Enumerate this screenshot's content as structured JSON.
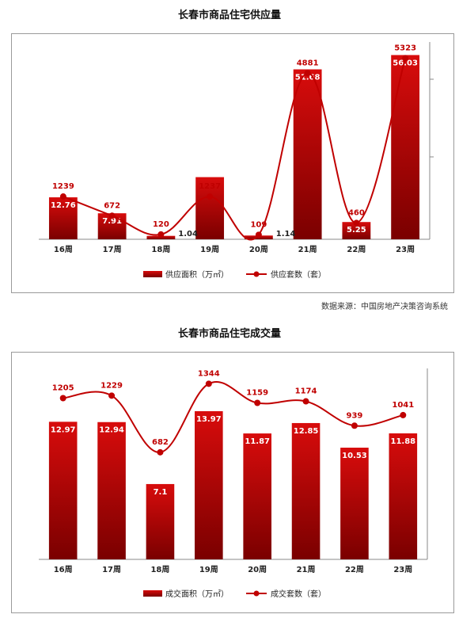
{
  "chart_data": [
    {
      "type": "bar",
      "title": "长春市商品住宅供应量",
      "categories": [
        "16周",
        "17周",
        "18周",
        "19周",
        "20周",
        "21周",
        "22周",
        "23周"
      ],
      "series": [
        {
          "name": "供应面积（万㎡）",
          "kind": "bar",
          "values": [
            12.76,
            7.91,
            1.04,
            18.9,
            1.14,
            51.68,
            5.25,
            56.03
          ],
          "labels": [
            "12.76",
            "7.91",
            "1.04",
            "",
            "1.14",
            "51.68",
            "5.25",
            "56.03"
          ]
        },
        {
          "name": "供应套数（套）",
          "kind": "line",
          "values": [
            1239,
            672,
            120,
            1237,
            109,
            4881,
            460,
            5323
          ],
          "labels": [
            "1239",
            "672",
            "120",
            "1237",
            "109",
            "4881",
            "460",
            "5323"
          ]
        }
      ],
      "bar_max": 60,
      "line_max": 5800,
      "source": "数据来源：中国房地产决策咨询系统"
    },
    {
      "type": "bar",
      "title": "长春市商品住宅成交量",
      "categories": [
        "16周",
        "17周",
        "18周",
        "19周",
        "20周",
        "21周",
        "22周",
        "23周"
      ],
      "series": [
        {
          "name": "成交面积（万㎡）",
          "kind": "bar",
          "values": [
            12.97,
            12.94,
            7.1,
            13.97,
            11.87,
            12.85,
            10.53,
            11.88
          ],
          "labels": [
            "12.97",
            "12.94",
            "7.1",
            "13.97",
            "11.87",
            "12.85",
            "10.53",
            "11.88"
          ]
        },
        {
          "name": "成交套数（套）",
          "kind": "line",
          "values": [
            1205,
            1229,
            682,
            1344,
            1159,
            1174,
            939,
            1041
          ],
          "labels": [
            "1205",
            "1229",
            "682",
            "1344",
            "1159",
            "1174",
            "939",
            "1041"
          ]
        }
      ],
      "bar_max": 18,
      "line_max": 1400
    }
  ]
}
